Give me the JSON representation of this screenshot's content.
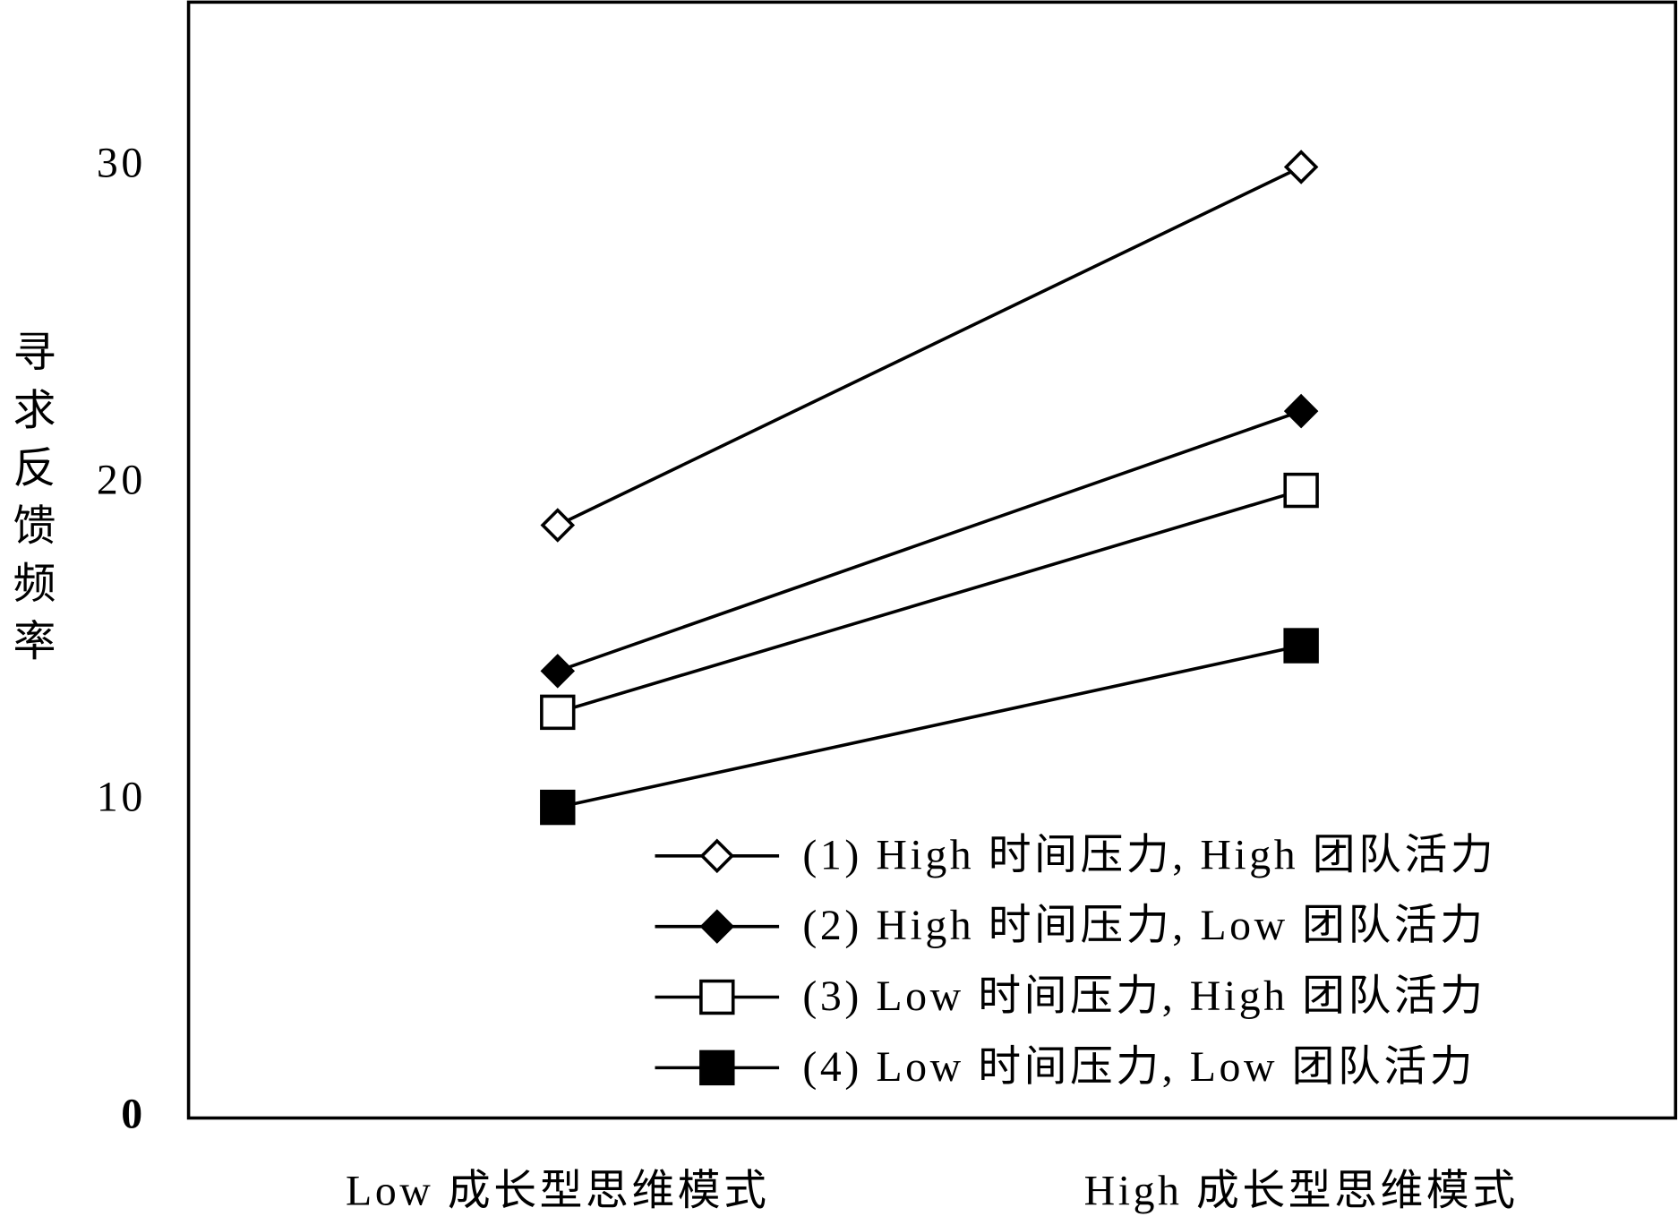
{
  "chart_data": {
    "type": "line",
    "y_label": "寻求反馈频率",
    "categories": [
      "Low 成长型思维模式",
      "High 成长型思维模式"
    ],
    "series": [
      {
        "name": "(1) High 时间压力, High 团队活力",
        "color": "#000000",
        "marker": "diamond",
        "filled": false,
        "values": [
          18.7,
          30.0
        ]
      },
      {
        "name": "(2) High 时间压力, Low 团队活力",
        "color": "#000000",
        "marker": "diamond",
        "filled": true,
        "values": [
          14.1,
          22.3
        ]
      },
      {
        "name": "(3) Low 时间压力, High 团队活力",
        "color": "#000000",
        "marker": "square",
        "filled": false,
        "values": [
          12.8,
          19.8
        ]
      },
      {
        "name": "(4) Low 时间压力, Low 团队活力",
        "color": "#000000",
        "marker": "square",
        "filled": true,
        "values": [
          9.8,
          14.9
        ]
      }
    ],
    "ylim": [
      0,
      35.2
    ],
    "yticks": [
      0,
      10,
      20,
      30
    ],
    "grid": false,
    "legend": "lower right"
  }
}
